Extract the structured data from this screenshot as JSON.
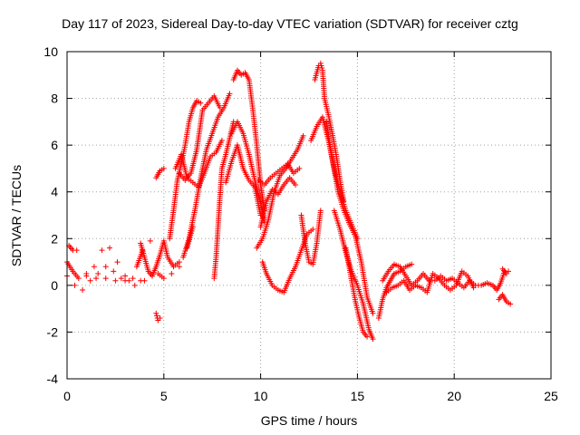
{
  "chart_data": {
    "type": "scatter",
    "title": "Day 117 of 2023, Sidereal Day-to-day VTEC variation (SDTVAR) for receiver cztg",
    "xlabel": "GPS time / hours",
    "ylabel": "SDTVAR / TECUs",
    "xlim": [
      0,
      25
    ],
    "ylim": [
      -4,
      10
    ],
    "xticks": [
      0,
      5,
      10,
      15,
      20,
      25
    ],
    "yticks": [
      -4,
      -2,
      0,
      2,
      4,
      6,
      8,
      10
    ],
    "grid": true,
    "marker": "+",
    "color": "#ff0000",
    "series": [
      {
        "name": "SDTVAR",
        "points": [
          [
            0.0,
            1.0
          ],
          [
            0.3,
            0.6
          ],
          [
            0.6,
            0.3
          ],
          [
            1.0,
            0.5
          ],
          [
            1.4,
            0.8
          ],
          [
            1.8,
            1.5
          ],
          [
            2.2,
            1.6
          ],
          [
            2.6,
            1.0
          ],
          [
            3.0,
            0.4
          ],
          [
            3.4,
            0.3
          ],
          [
            3.8,
            0.2
          ],
          [
            0.0,
            0.4
          ],
          [
            0.4,
            0.0
          ],
          [
            0.8,
            -0.2
          ],
          [
            1.2,
            0.2
          ],
          [
            1.6,
            0.5
          ],
          [
            2.0,
            0.8
          ],
          [
            2.4,
            0.6
          ],
          [
            2.8,
            0.3
          ],
          [
            3.2,
            0.2
          ],
          [
            0.1,
            1.7
          ],
          [
            0.3,
            1.5
          ],
          [
            0.5,
            1.5
          ],
          [
            1.0,
            0.4
          ],
          [
            1.5,
            0.3
          ],
          [
            2.0,
            0.3
          ],
          [
            2.5,
            0.2
          ],
          [
            3.0,
            0.2
          ],
          [
            3.5,
            0.0
          ],
          [
            4.0,
            0.2
          ],
          [
            3.8,
            1.8
          ],
          [
            4.0,
            1.2
          ],
          [
            4.2,
            0.6
          ],
          [
            4.4,
            0.4
          ],
          [
            4.6,
            0.8
          ],
          [
            4.8,
            1.3
          ],
          [
            5.0,
            1.9
          ],
          [
            5.2,
            1.2
          ],
          [
            5.5,
            0.8
          ],
          [
            5.8,
            1.0
          ],
          [
            3.6,
            0.8
          ],
          [
            3.9,
            1.5
          ],
          [
            4.3,
            1.9
          ],
          [
            4.7,
            0.5
          ],
          [
            5.0,
            0.3
          ],
          [
            5.4,
            0.5
          ],
          [
            5.8,
            0.8
          ],
          [
            6.2,
            1.6
          ],
          [
            6.5,
            2.5
          ],
          [
            4.6,
            -1.2
          ],
          [
            4.7,
            -1.5
          ],
          [
            4.8,
            -1.4
          ],
          [
            4.6,
            4.6
          ],
          [
            4.8,
            4.9
          ],
          [
            5.0,
            5.0
          ],
          [
            5.3,
            2.0
          ],
          [
            5.5,
            3.2
          ],
          [
            5.7,
            4.5
          ],
          [
            5.9,
            5.2
          ],
          [
            6.1,
            6.0
          ],
          [
            6.3,
            7.0
          ],
          [
            6.5,
            7.6
          ],
          [
            6.7,
            7.9
          ],
          [
            6.9,
            7.8
          ],
          [
            5.6,
            5.0
          ],
          [
            5.9,
            5.6
          ],
          [
            6.2,
            4.6
          ],
          [
            6.5,
            4.4
          ],
          [
            6.8,
            4.2
          ],
          [
            7.1,
            4.8
          ],
          [
            7.4,
            5.5
          ],
          [
            7.7,
            5.7
          ],
          [
            8.0,
            6.2
          ],
          [
            6.0,
            1.2
          ],
          [
            6.3,
            2.0
          ],
          [
            6.6,
            3.2
          ],
          [
            6.9,
            4.6
          ],
          [
            7.2,
            5.8
          ],
          [
            7.5,
            6.5
          ],
          [
            7.8,
            7.2
          ],
          [
            8.1,
            7.6
          ],
          [
            8.4,
            8.2
          ],
          [
            5.8,
            4.8
          ],
          [
            6.1,
            4.5
          ],
          [
            6.4,
            4.8
          ],
          [
            6.7,
            5.8
          ],
          [
            7.0,
            7.5
          ],
          [
            7.3,
            7.8
          ],
          [
            7.6,
            8.1
          ],
          [
            7.9,
            7.6
          ],
          [
            7.6,
            0.3
          ],
          [
            7.7,
            1.2
          ],
          [
            7.8,
            2.5
          ],
          [
            7.9,
            3.8
          ],
          [
            8.0,
            5.0
          ],
          [
            8.2,
            5.6
          ],
          [
            8.4,
            6.3
          ],
          [
            8.6,
            7.0
          ],
          [
            8.6,
            8.8
          ],
          [
            8.8,
            9.2
          ],
          [
            9.0,
            9.0
          ],
          [
            9.2,
            9.1
          ],
          [
            9.4,
            8.8
          ],
          [
            9.6,
            7.5
          ],
          [
            9.8,
            6.0
          ],
          [
            10.0,
            4.3
          ],
          [
            10.2,
            3.2
          ],
          [
            8.5,
            6.5
          ],
          [
            8.8,
            7.0
          ],
          [
            9.1,
            6.5
          ],
          [
            9.4,
            5.6
          ],
          [
            9.7,
            4.5
          ],
          [
            10.0,
            3.5
          ],
          [
            10.2,
            2.7
          ],
          [
            8.2,
            4.4
          ],
          [
            8.5,
            5.3
          ],
          [
            8.8,
            6.0
          ],
          [
            9.1,
            5.0
          ],
          [
            9.4,
            4.5
          ],
          [
            9.7,
            4.2
          ],
          [
            10.0,
            3.0
          ],
          [
            9.8,
            1.6
          ],
          [
            10.1,
            2.0
          ],
          [
            10.4,
            2.8
          ],
          [
            10.7,
            4.0
          ],
          [
            11.0,
            4.7
          ],
          [
            11.3,
            5.0
          ],
          [
            11.6,
            5.4
          ],
          [
            11.9,
            5.8
          ],
          [
            12.2,
            6.4
          ],
          [
            9.9,
            4.5
          ],
          [
            10.2,
            4.3
          ],
          [
            10.5,
            4.6
          ],
          [
            10.8,
            4.8
          ],
          [
            11.1,
            5.0
          ],
          [
            11.4,
            5.2
          ],
          [
            11.7,
            4.8
          ],
          [
            12.0,
            5.0
          ],
          [
            10.0,
            2.5
          ],
          [
            10.3,
            3.6
          ],
          [
            10.6,
            4.1
          ],
          [
            10.9,
            3.9
          ],
          [
            11.2,
            4.3
          ],
          [
            11.5,
            4.6
          ],
          [
            11.8,
            4.3
          ],
          [
            10.1,
            1.0
          ],
          [
            10.3,
            0.5
          ],
          [
            10.6,
            0.0
          ],
          [
            10.9,
            -0.2
          ],
          [
            11.2,
            -0.3
          ],
          [
            11.5,
            0.3
          ],
          [
            11.8,
            0.8
          ],
          [
            12.1,
            1.5
          ],
          [
            12.4,
            2.2
          ],
          [
            12.7,
            2.4
          ],
          [
            12.1,
            3.0
          ],
          [
            12.3,
            1.8
          ],
          [
            12.5,
            1.0
          ],
          [
            12.7,
            0.9
          ],
          [
            12.9,
            1.8
          ],
          [
            13.1,
            3.2
          ],
          [
            12.8,
            8.8
          ],
          [
            13.0,
            9.4
          ],
          [
            13.1,
            9.5
          ],
          [
            13.2,
            9.2
          ],
          [
            13.3,
            8.0
          ],
          [
            13.5,
            7.3
          ],
          [
            13.7,
            6.5
          ],
          [
            13.9,
            5.6
          ],
          [
            14.1,
            4.5
          ],
          [
            14.3,
            3.6
          ],
          [
            12.6,
            6.2
          ],
          [
            12.9,
            6.8
          ],
          [
            13.2,
            7.2
          ],
          [
            13.5,
            6.2
          ],
          [
            13.8,
            5.0
          ],
          [
            14.1,
            4.0
          ],
          [
            14.4,
            3.2
          ],
          [
            14.7,
            2.6
          ],
          [
            15.0,
            2.0
          ],
          [
            13.4,
            7.0
          ],
          [
            13.7,
            5.4
          ],
          [
            14.0,
            4.0
          ],
          [
            14.3,
            3.2
          ],
          [
            14.6,
            2.6
          ],
          [
            14.9,
            2.1
          ],
          [
            15.2,
            1.0
          ],
          [
            15.5,
            -0.5
          ],
          [
            15.8,
            -1.2
          ],
          [
            13.8,
            3.2
          ],
          [
            14.1,
            2.4
          ],
          [
            14.4,
            1.4
          ],
          [
            14.7,
            0.6
          ],
          [
            15.0,
            0.0
          ],
          [
            15.3,
            -0.8
          ],
          [
            15.6,
            -1.9
          ],
          [
            15.8,
            -2.3
          ],
          [
            14.4,
            1.6
          ],
          [
            14.7,
            0.2
          ],
          [
            14.9,
            -0.7
          ],
          [
            15.1,
            -1.4
          ],
          [
            15.3,
            -2.0
          ],
          [
            15.5,
            -2.2
          ],
          [
            16.1,
            -1.4
          ],
          [
            16.3,
            -0.6
          ],
          [
            16.5,
            -0.1
          ],
          [
            16.7,
            0.2
          ],
          [
            16.9,
            0.5
          ],
          [
            17.2,
            0.6
          ],
          [
            17.5,
            0.8
          ],
          [
            17.8,
            0.9
          ],
          [
            16.3,
            0.2
          ],
          [
            16.6,
            0.6
          ],
          [
            16.9,
            0.9
          ],
          [
            17.2,
            0.8
          ],
          [
            17.5,
            0.4
          ],
          [
            17.8,
            0.0
          ],
          [
            18.1,
            0.2
          ],
          [
            18.4,
            0.5
          ],
          [
            18.7,
            0.2
          ],
          [
            16.5,
            -0.3
          ],
          [
            16.8,
            -0.1
          ],
          [
            17.1,
            0.0
          ],
          [
            17.4,
            0.2
          ],
          [
            17.7,
            -0.2
          ],
          [
            18.0,
            0.0
          ],
          [
            18.3,
            -0.1
          ],
          [
            18.6,
            -0.3
          ],
          [
            18.9,
            0.5
          ],
          [
            19.2,
            0.3
          ],
          [
            19.5,
            0.0
          ],
          [
            19.8,
            -0.2
          ],
          [
            20.1,
            0.0
          ],
          [
            20.4,
            0.6
          ],
          [
            20.7,
            0.4
          ],
          [
            21.0,
            -0.1
          ],
          [
            19.0,
            0.2
          ],
          [
            19.3,
            0.4
          ],
          [
            19.6,
            0.2
          ],
          [
            19.9,
            0.3
          ],
          [
            20.2,
            0.1
          ],
          [
            20.5,
            -0.1
          ],
          [
            20.8,
            0.2
          ],
          [
            21.1,
            0.0
          ],
          [
            21.4,
            0.0
          ],
          [
            21.7,
            0.1
          ],
          [
            22.0,
            0.0
          ],
          [
            22.2,
            -0.2
          ],
          [
            22.4,
            0.1
          ],
          [
            22.6,
            0.6
          ],
          [
            22.8,
            0.6
          ],
          [
            22.3,
            -0.6
          ],
          [
            22.5,
            -0.4
          ],
          [
            22.7,
            -0.7
          ],
          [
            22.9,
            -0.8
          ],
          [
            22.5,
            0.7
          ],
          [
            22.7,
            0.5
          ]
        ]
      }
    ]
  }
}
